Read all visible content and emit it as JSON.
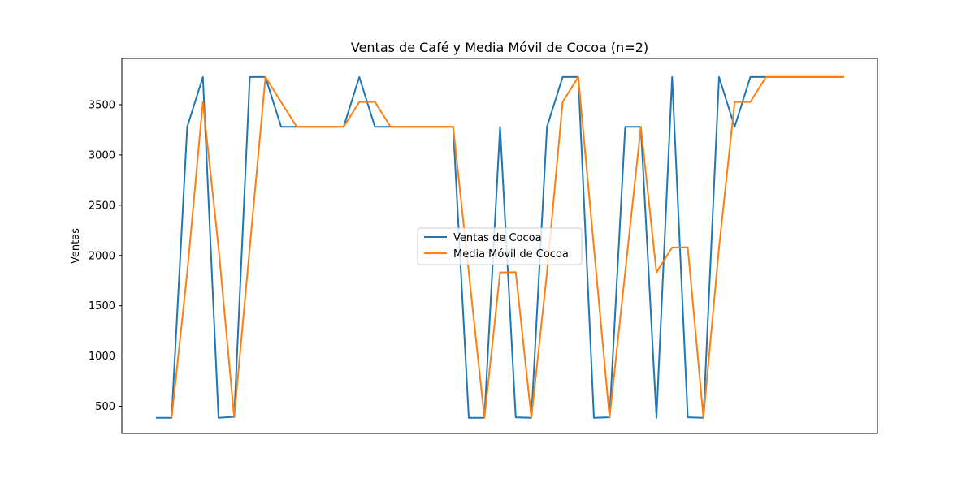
{
  "chart_data": {
    "type": "line",
    "title": "Ventas de Café y Media Móvil de Cocoa (n=2)",
    "xlabel": "",
    "ylabel": "Ventas",
    "ylim": [
      230,
      3960
    ],
    "yticks": [
      500,
      1000,
      1500,
      2000,
      2500,
      3000,
      3500
    ],
    "x_ticks_visible": false,
    "grid": false,
    "legend_position": "center-right",
    "series": [
      {
        "name": "Ventas de Cocoa",
        "color": "#1f77b4",
        "values": [
          385,
          385,
          3280,
          3775,
          385,
          395,
          3775,
          3775,
          3280,
          3280,
          3280,
          3280,
          3280,
          3775,
          3280,
          3280,
          3280,
          3280,
          3280,
          3280,
          385,
          385,
          3280,
          390,
          385,
          3280,
          3775,
          3775,
          385,
          390,
          3280,
          3280,
          385,
          3775,
          390,
          385,
          3775,
          3280,
          3775,
          3775,
          3775,
          3775,
          3775,
          3775,
          3775
        ]
      },
      {
        "name": "Media Móvil de Cocoa",
        "color": "#ff7f0e",
        "values": [
          null,
          385,
          1832,
          3527,
          2080,
          390,
          2085,
          3775,
          3527,
          3280,
          3280,
          3280,
          3280,
          3527,
          3527,
          3280,
          3280,
          3280,
          3280,
          3280,
          1832,
          385,
          1832,
          1835,
          387,
          1832,
          3527,
          3775,
          2080,
          387,
          1835,
          3280,
          1832,
          2080,
          2082,
          387,
          2080,
          3527,
          3527,
          3775,
          3775,
          3775,
          3775,
          3775,
          3775
        ]
      }
    ]
  }
}
